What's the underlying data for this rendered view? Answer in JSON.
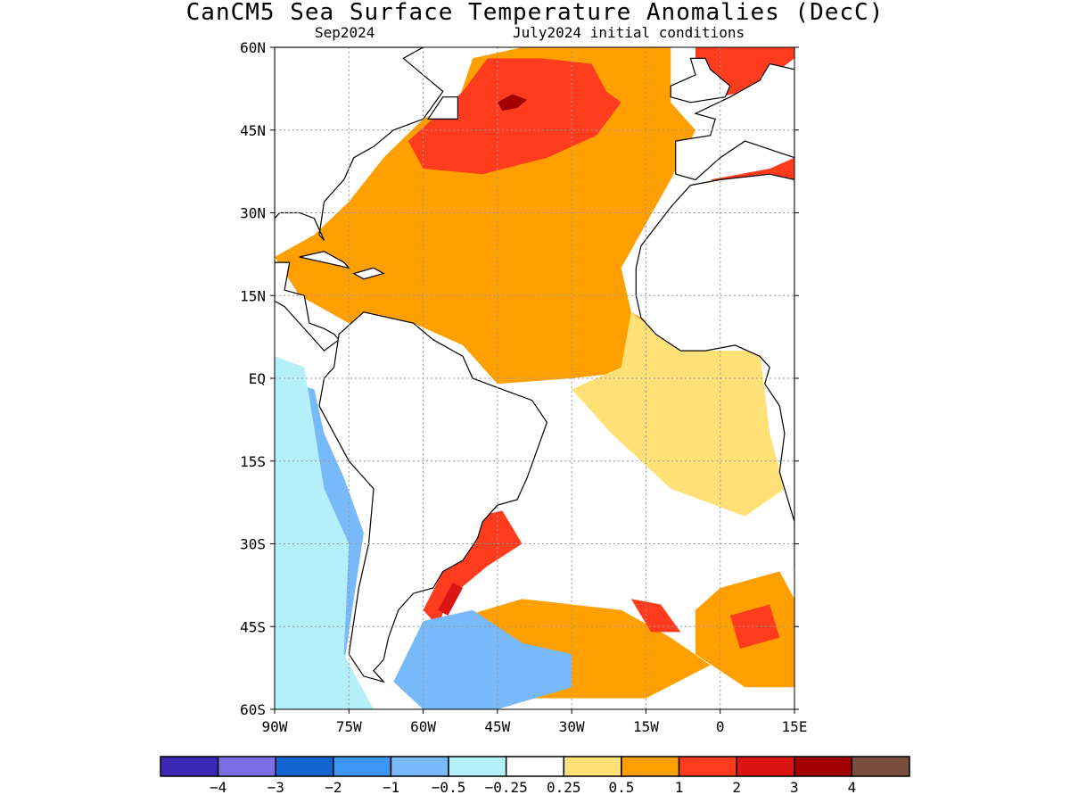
{
  "title": "CanCM5 Sea Surface Temperature Anomalies (DecC)",
  "subtitle_left": "Sep2024",
  "subtitle_right": "July2024 initial conditions",
  "map": {
    "lon_range": [
      -90,
      15
    ],
    "lat_range": [
      -60,
      60
    ],
    "lat_ticks": [
      {
        "value": 60,
        "label": "60N"
      },
      {
        "value": 45,
        "label": "45N"
      },
      {
        "value": 30,
        "label": "30N"
      },
      {
        "value": 15,
        "label": "15N"
      },
      {
        "value": 0,
        "label": "EQ"
      },
      {
        "value": -15,
        "label": "15S"
      },
      {
        "value": -30,
        "label": "30S"
      },
      {
        "value": -45,
        "label": "45S"
      },
      {
        "value": -60,
        "label": "60S"
      }
    ],
    "lon_ticks": [
      {
        "value": -90,
        "label": "90W"
      },
      {
        "value": -75,
        "label": "75W"
      },
      {
        "value": -60,
        "label": "60W"
      },
      {
        "value": -45,
        "label": "45W"
      },
      {
        "value": -30,
        "label": "30W"
      },
      {
        "value": -15,
        "label": "15W"
      },
      {
        "value": 0,
        "label": "0"
      },
      {
        "value": 15,
        "label": "15E"
      }
    ]
  },
  "colorbar": {
    "colors": [
      "#3c28b4",
      "#7d6de6",
      "#1464d2",
      "#3c96f5",
      "#78b9fa",
      "#b4f0fa",
      "#ffffff",
      "#ffe178",
      "#ffa000",
      "#ff3c1e",
      "#dc1414",
      "#a00000",
      "#7a4e3f"
    ],
    "labels": [
      "−4",
      "−3",
      "−2",
      "−1",
      "−0.5",
      "−0.25",
      "0.25",
      "0.5",
      "1",
      "2",
      "3",
      "4"
    ]
  },
  "anomaly_regions": [
    {
      "name": "north-atlantic-warm",
      "level": 0.75,
      "pts": [
        [
          -82,
          26
        ],
        [
          -75,
          32
        ],
        [
          -68,
          40
        ],
        [
          -60,
          47
        ],
        [
          -53,
          50
        ],
        [
          -50,
          58
        ],
        [
          -40,
          60
        ],
        [
          -10,
          60
        ],
        [
          -10,
          50
        ],
        [
          -5,
          45
        ],
        [
          -10,
          36
        ],
        [
          -15,
          28
        ],
        [
          -20,
          20
        ],
        [
          -18,
          12
        ],
        [
          -10,
          8
        ],
        [
          -10,
          2
        ],
        [
          -30,
          0
        ],
        [
          -45,
          -1
        ],
        [
          -52,
          6
        ],
        [
          -62,
          10
        ],
        [
          -75,
          10
        ],
        [
          -85,
          15
        ],
        [
          -90,
          22
        ]
      ]
    },
    {
      "name": "tropical-atlantic-yellow",
      "level": 0.4,
      "pts": [
        [
          -18,
          12
        ],
        [
          -8,
          5
        ],
        [
          8,
          5
        ],
        [
          10,
          -10
        ],
        [
          13,
          -20
        ],
        [
          5,
          -25
        ],
        [
          -10,
          -20
        ],
        [
          -22,
          -10
        ],
        [
          -30,
          -2
        ],
        [
          -20,
          2
        ]
      ]
    },
    {
      "name": "midlatitude-warm-core",
      "level": 1.5,
      "pts": [
        [
          -63,
          43
        ],
        [
          -52,
          52
        ],
        [
          -47,
          58
        ],
        [
          -36,
          58
        ],
        [
          -26,
          57
        ],
        [
          -23,
          52
        ],
        [
          -20,
          50
        ],
        [
          -25,
          44
        ],
        [
          -35,
          40
        ],
        [
          -48,
          37
        ],
        [
          -60,
          38
        ]
      ]
    },
    {
      "name": "labrador-hotspot",
      "level": 3.5,
      "pts": [
        [
          -45,
          50
        ],
        [
          -42,
          51.5
        ],
        [
          -39,
          50.5
        ],
        [
          -41,
          49
        ],
        [
          -44,
          48.5
        ]
      ]
    },
    {
      "name": "brazil-current-warm",
      "level": 1.5,
      "pts": [
        [
          -49,
          -25
        ],
        [
          -44,
          -24
        ],
        [
          -40,
          -30
        ],
        [
          -47,
          -34
        ],
        [
          -55,
          -40
        ],
        [
          -57,
          -45
        ],
        [
          -60,
          -42
        ],
        [
          -56,
          -35
        ]
      ]
    },
    {
      "name": "brazil-hotspot",
      "level": 2.8,
      "pts": [
        [
          -54,
          -37
        ],
        [
          -52,
          -38
        ],
        [
          -55,
          -43
        ],
        [
          -57,
          -42
        ]
      ]
    },
    {
      "name": "south-atlantic-warm-1",
      "level": 0.75,
      "pts": [
        [
          -55,
          -44
        ],
        [
          -40,
          -40
        ],
        [
          -20,
          -42
        ],
        [
          -10,
          -47
        ],
        [
          -2,
          -52
        ],
        [
          -15,
          -58
        ],
        [
          -40,
          -58
        ],
        [
          -55,
          -52
        ]
      ]
    },
    {
      "name": "south-atlantic-warm-2",
      "level": 0.75,
      "pts": [
        [
          0,
          -38
        ],
        [
          12,
          -35
        ],
        [
          15,
          -40
        ],
        [
          15,
          -56
        ],
        [
          5,
          -56
        ],
        [
          -5,
          -50
        ],
        [
          -5,
          -42
        ]
      ]
    },
    {
      "name": "south-atlantic-red",
      "level": 1.5,
      "pts": [
        [
          -18,
          -40
        ],
        [
          -12,
          -41
        ],
        [
          -8,
          -46
        ],
        [
          -14,
          -46
        ]
      ]
    },
    {
      "name": "south-atlantic-red-2",
      "level": 1.5,
      "pts": [
        [
          2,
          -43
        ],
        [
          10,
          -41
        ],
        [
          12,
          -47
        ],
        [
          4,
          -49
        ]
      ]
    },
    {
      "name": "sw-atlantic-cool",
      "level": -0.6,
      "pts": [
        [
          -60,
          -44
        ],
        [
          -50,
          -42
        ],
        [
          -40,
          -48
        ],
        [
          -30,
          -50
        ],
        [
          -30,
          -56
        ],
        [
          -45,
          -60
        ],
        [
          -60,
          -60
        ],
        [
          -66,
          -55
        ]
      ]
    },
    {
      "name": "east-pacific-cool",
      "level": -0.6,
      "pts": [
        [
          -90,
          0
        ],
        [
          -82,
          -2
        ],
        [
          -80,
          -10
        ],
        [
          -76,
          -18
        ],
        [
          -72,
          -28
        ],
        [
          -74,
          -40
        ],
        [
          -76,
          -52
        ],
        [
          -82,
          -58
        ],
        [
          -90,
          -58
        ]
      ]
    },
    {
      "name": "east-pacific-light",
      "level": -0.3,
      "pts": [
        [
          -90,
          4
        ],
        [
          -84,
          2
        ],
        [
          -80,
          -20
        ],
        [
          -75,
          -30
        ],
        [
          -76,
          -50
        ],
        [
          -70,
          -60
        ],
        [
          -90,
          -60
        ]
      ]
    },
    {
      "name": "mediterranean-warm",
      "level": 1.5,
      "pts": [
        [
          -2,
          36
        ],
        [
          10,
          38
        ],
        [
          15,
          40
        ],
        [
          15,
          33
        ],
        [
          5,
          34
        ]
      ]
    },
    {
      "name": "north-sea-warm",
      "level": 1.5,
      "pts": [
        [
          -5,
          50
        ],
        [
          5,
          52
        ],
        [
          12,
          56
        ],
        [
          15,
          58
        ],
        [
          15,
          60
        ],
        [
          -5,
          60
        ]
      ]
    }
  ]
}
